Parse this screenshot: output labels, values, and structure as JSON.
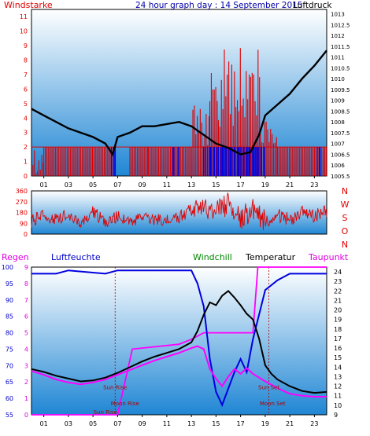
{
  "colors": {
    "panel_top": "#ffffff",
    "panel_bottom": "#1f86d4",
    "red": "#e00000",
    "blue": "#0000e0",
    "black": "#000000",
    "magenta": "#ff00ff",
    "green": "#008800",
    "darkred": "#aa0000"
  },
  "header": {
    "windstarke": "Windstarke",
    "title": "24 hour graph day : 14 September 2015",
    "luftdruck": "Luftdruck"
  },
  "x_hours": [
    "01",
    "03",
    "05",
    "07",
    "09",
    "11",
    "13",
    "15",
    "17",
    "19",
    "21",
    "23"
  ],
  "chart_data": [
    {
      "type": "bar",
      "name": "wind-pressure",
      "left_axis": {
        "label": "Windstarke",
        "ticks": [
          0,
          1,
          2,
          3,
          4,
          5,
          6,
          7,
          8,
          9,
          10,
          11
        ],
        "ylim": [
          0,
          11.5
        ]
      },
      "right_axis": {
        "label": "Luftdruck",
        "ticks": [
          "1005.5",
          "1006",
          "1006.5",
          "1007",
          "1007.5",
          "1008",
          "1008.5",
          "1009",
          "1009.5",
          "1010",
          "1010.5",
          "1011",
          "1011.5",
          "1012",
          "1012.5",
          "1013"
        ],
        "ylim": [
          1005.5,
          1013.2
        ]
      },
      "xlim": [
        0,
        24
      ],
      "series": [
        {
          "name": "Luftdruck",
          "color": "#000000",
          "points": [
            [
              0,
              1008.6
            ],
            [
              1,
              1008.3
            ],
            [
              2,
              1008.0
            ],
            [
              3,
              1007.7
            ],
            [
              4,
              1007.5
            ],
            [
              5,
              1007.3
            ],
            [
              6,
              1007.0
            ],
            [
              6.6,
              1006.5
            ],
            [
              7,
              1007.3
            ],
            [
              8,
              1007.5
            ],
            [
              9,
              1007.8
            ],
            [
              10,
              1007.8
            ],
            [
              11,
              1007.9
            ],
            [
              12,
              1008.0
            ],
            [
              13,
              1007.8
            ],
            [
              14,
              1007.4
            ],
            [
              15,
              1007.0
            ],
            [
              16,
              1006.8
            ],
            [
              17,
              1006.5
            ],
            [
              17.8,
              1006.6
            ],
            [
              18.5,
              1007.4
            ],
            [
              19,
              1008.3
            ],
            [
              20,
              1008.8
            ],
            [
              21,
              1009.3
            ],
            [
              22,
              1010.0
            ],
            [
              23,
              1010.6
            ],
            [
              24,
              1011.3
            ]
          ]
        },
        {
          "name": "Windstarke",
          "color": "#e00000",
          "segments": [
            [
              0,
              1,
              0,
              2
            ],
            [
              1,
              6.7,
              2,
              2
            ],
            [
              6.7,
              8,
              0,
              0
            ],
            [
              8,
              9.5,
              2,
              2
            ],
            [
              9.5,
              13,
              2,
              2
            ],
            [
              13,
              14.5,
              2,
              5
            ],
            [
              14.5,
              15.2,
              5,
              8
            ],
            [
              15.2,
              16.5,
              3,
              9
            ],
            [
              16.5,
              18.6,
              4,
              9
            ],
            [
              18.6,
              20,
              2,
              4
            ],
            [
              20,
              24,
              2,
              2
            ]
          ]
        },
        {
          "name": "Windrichtung",
          "color": "#0000e0",
          "segments": [
            [
              6.5,
              7,
              0,
              2
            ],
            [
              11.5,
              12.5,
              0,
              2
            ],
            [
              14,
              19,
              0,
              2
            ],
            [
              23,
              23.5,
              0,
              2
            ]
          ]
        }
      ]
    },
    {
      "type": "line",
      "name": "wind-direction",
      "left_axis": {
        "ticks": [
          0,
          90,
          180,
          270,
          360
        ],
        "ylim": [
          0,
          360
        ]
      },
      "right_axis": {
        "labels": [
          "N",
          "W",
          "S",
          "O",
          "N"
        ]
      },
      "xlim": [
        0,
        24
      ],
      "series": [
        {
          "name": "Windrichtung",
          "color": "#e00000",
          "points": [
            [
              0,
              110
            ],
            [
              1,
              150
            ],
            [
              2,
              120
            ],
            [
              3,
              170
            ],
            [
              4,
              100
            ],
            [
              5,
              180
            ],
            [
              6,
              110
            ],
            [
              7,
              140
            ],
            [
              8,
              90
            ],
            [
              9,
              160
            ],
            [
              10,
              110
            ],
            [
              11,
              120
            ],
            [
              12,
              140
            ],
            [
              13,
              200
            ],
            [
              14,
              230
            ],
            [
              15,
              180
            ],
            [
              16,
              260
            ],
            [
              17,
              130
            ],
            [
              18,
              200
            ],
            [
              19,
              100
            ],
            [
              20,
              160
            ],
            [
              21,
              120
            ],
            [
              22,
              190
            ],
            [
              23,
              150
            ],
            [
              24,
              200
            ]
          ]
        }
      ]
    },
    {
      "type": "line",
      "name": "temp-humidity",
      "axes": {
        "Regen": {
          "label": "Regen",
          "ticks": [
            0,
            1,
            2,
            3,
            4,
            5,
            6,
            7,
            8,
            9
          ],
          "ylim": [
            0,
            9
          ]
        },
        "Luftfeuchte": {
          "label": "Luftfeuchte",
          "ticks": [
            55,
            60,
            65,
            70,
            75,
            80,
            85,
            90,
            95,
            100
          ],
          "ylim": [
            55,
            100
          ]
        },
        "Temperatur": {
          "label": "Temperatur",
          "ticks": [
            9,
            10,
            11,
            12,
            13,
            14,
            15,
            16,
            17,
            18,
            19,
            20,
            21,
            22,
            23,
            24
          ],
          "ylim": [
            9,
            24.5
          ]
        }
      },
      "labels": {
        "windchill": "Windchill",
        "taupunkt": "Taupunkt"
      },
      "annotations": [
        {
          "text": "Sun Rise",
          "x": 6.8,
          "y": 11.7
        },
        {
          "text": "Sun Set",
          "x": 19.3,
          "y": 11.7
        },
        {
          "text": "Moon Rise",
          "x": 7.6,
          "y": 10.0
        },
        {
          "text": "Moon Set",
          "x": 19.6,
          "y": 10.0
        },
        {
          "text": "Sun Rise",
          "x": 6.0,
          "y": 9.1
        }
      ],
      "xlim": [
        0,
        24
      ],
      "series": [
        {
          "name": "Luftfeuchte",
          "color": "#0000e0",
          "axis": "Luftfeuchte",
          "points": [
            [
              0,
              98
            ],
            [
              2,
              98
            ],
            [
              3,
              99
            ],
            [
              6,
              98
            ],
            [
              7,
              99
            ],
            [
              11,
              99
            ],
            [
              13,
              99
            ],
            [
              13.5,
              95
            ],
            [
              14,
              88
            ],
            [
              14.5,
              72
            ],
            [
              15,
              62
            ],
            [
              15.5,
              58
            ],
            [
              16,
              63
            ],
            [
              16.5,
              68
            ],
            [
              17,
              72
            ],
            [
              17.5,
              68
            ],
            [
              18,
              78
            ],
            [
              19,
              93
            ],
            [
              20,
              96
            ],
            [
              21,
              98
            ],
            [
              24,
              98
            ]
          ]
        },
        {
          "name": "Temperatur",
          "color": "#000000",
          "axis": "Temperatur",
          "points": [
            [
              0,
              13.8
            ],
            [
              1,
              13.5
            ],
            [
              2,
              13.1
            ],
            [
              3,
              12.8
            ],
            [
              4,
              12.5
            ],
            [
              5,
              12.6
            ],
            [
              6,
              12.9
            ],
            [
              7,
              13.4
            ],
            [
              8,
              14.0
            ],
            [
              9,
              14.6
            ],
            [
              10,
              15.1
            ],
            [
              11,
              15.5
            ],
            [
              12,
              15.9
            ],
            [
              13,
              16.6
            ],
            [
              13.5,
              17.8
            ],
            [
              14,
              19.5
            ],
            [
              14.5,
              20.8
            ],
            [
              15,
              20.5
            ],
            [
              15.5,
              21.5
            ],
            [
              16,
              22.0
            ],
            [
              16.5,
              21.3
            ],
            [
              17,
              20.5
            ],
            [
              17.5,
              19.6
            ],
            [
              18,
              19.0
            ],
            [
              18.5,
              17.0
            ],
            [
              19,
              14.2
            ],
            [
              19.5,
              13.3
            ],
            [
              20,
              12.7
            ],
            [
              21,
              12.0
            ],
            [
              22,
              11.5
            ],
            [
              23,
              11.3
            ],
            [
              24,
              11.4
            ]
          ]
        },
        {
          "name": "Taupunkt",
          "color": "#ff00ff",
          "axis": "Temperatur",
          "points": [
            [
              0,
              13.6
            ],
            [
              1,
              13.2
            ],
            [
              2,
              12.7
            ],
            [
              3,
              12.4
            ],
            [
              4,
              12.2
            ],
            [
              5,
              12.4
            ],
            [
              6,
              12.7
            ],
            [
              7,
              13.2
            ],
            [
              8,
              13.7
            ],
            [
              9,
              14.2
            ],
            [
              10,
              14.7
            ],
            [
              11,
              15.1
            ],
            [
              12,
              15.5
            ],
            [
              13,
              16.0
            ],
            [
              13.5,
              16.2
            ],
            [
              14,
              15.9
            ],
            [
              14.5,
              13.8
            ],
            [
              15,
              12.8
            ],
            [
              15.5,
              12.0
            ],
            [
              16,
              13.0
            ],
            [
              16.5,
              13.8
            ],
            [
              17,
              13.3
            ],
            [
              17.5,
              13.9
            ],
            [
              18,
              13.3
            ],
            [
              19,
              12.5
            ],
            [
              20,
              11.8
            ],
            [
              21,
              11.2
            ],
            [
              22,
              11.0
            ],
            [
              23,
              10.9
            ],
            [
              24,
              10.9
            ]
          ]
        },
        {
          "name": "Regen",
          "color": "#ff00ff",
          "axis": "Regen",
          "points": [
            [
              0,
              0
            ],
            [
              7,
              0
            ],
            [
              8.2,
              4
            ],
            [
              12,
              4.3
            ],
            [
              13,
              4.6
            ],
            [
              14,
              5
            ],
            [
              15,
              5
            ],
            [
              18,
              5
            ],
            [
              18.4,
              9
            ],
            [
              24,
              9
            ]
          ]
        }
      ]
    }
  ]
}
